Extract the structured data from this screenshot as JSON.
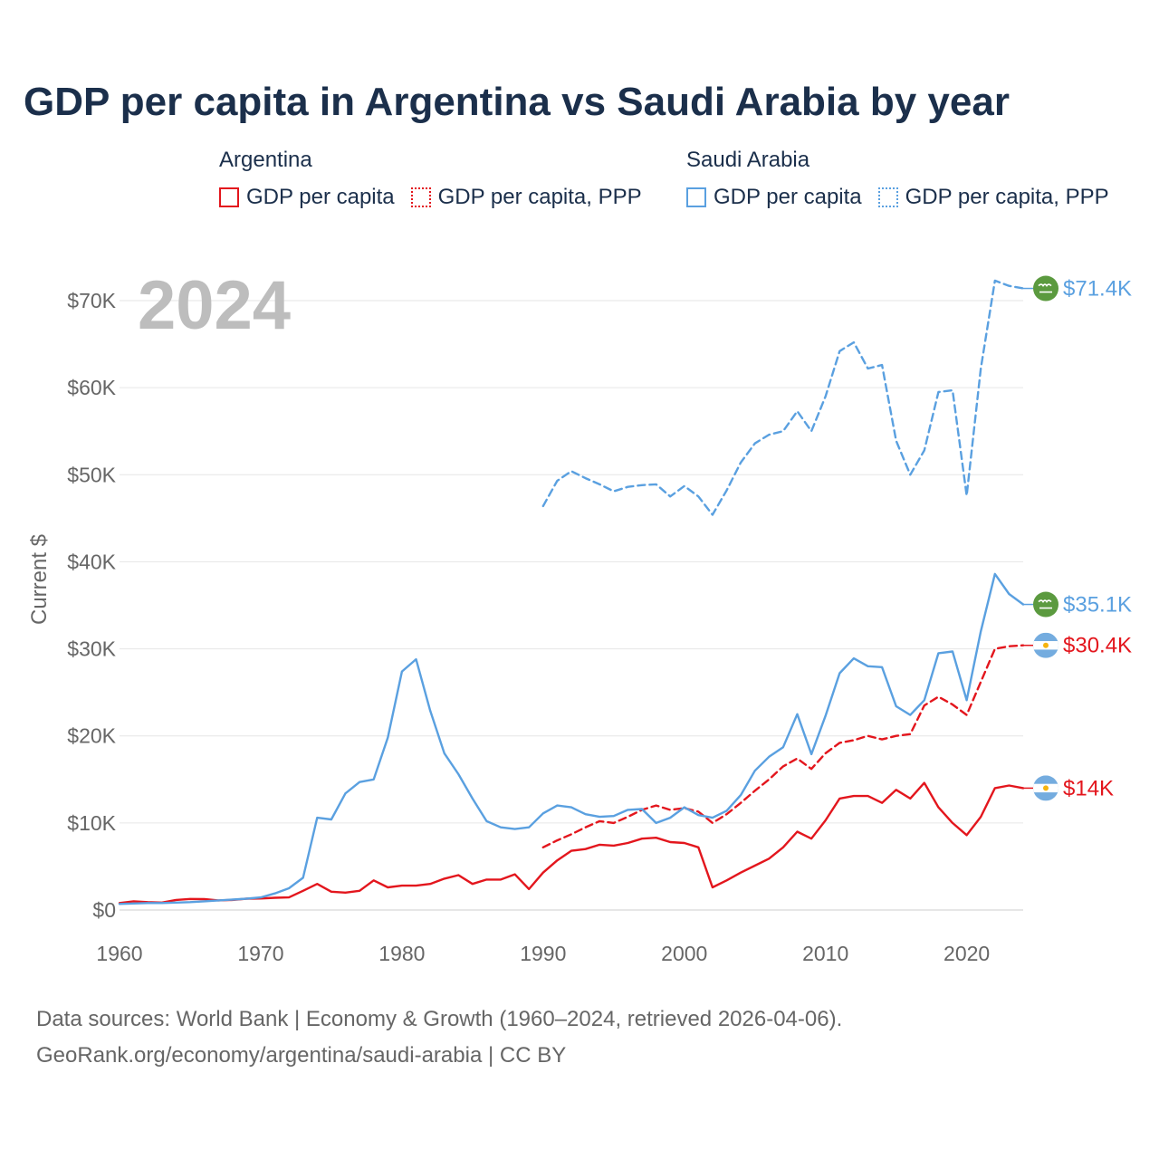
{
  "title": "GDP per capita in Argentina vs Saudi Arabia by year",
  "legend": {
    "groups": [
      {
        "name": "Argentina",
        "items": [
          "GDP per capita",
          "GDP per capita, PPP"
        ],
        "color": "#e3161d"
      },
      {
        "name": "Saudi Arabia",
        "items": [
          "GDP per capita",
          "GDP per capita, PPP"
        ],
        "color": "#5aa0e0"
      }
    ]
  },
  "year_watermark": "2024",
  "caption": {
    "line1": "Data sources: World Bank | Economy & Growth (1960–2024, retrieved 2026-04-06).",
    "line2": "GeoRank.org/economy/argentina/saudi-arabia | CC BY"
  },
  "colors": {
    "argentina": "#e3161d",
    "saudi_arabia": "#5aa0e0",
    "grid": "#e6e6e6",
    "title": "#1b2f4b"
  },
  "chart_data": {
    "type": "line",
    "ylabel": "Current $",
    "xlabel": "",
    "xlim": [
      1960,
      2024
    ],
    "ylim": [
      0,
      70000
    ],
    "x_ticks": [
      1960,
      1970,
      1980,
      1990,
      2000,
      2010,
      2020
    ],
    "x_tick_labels": [
      "1960",
      "1970",
      "1980",
      "1990",
      "2000",
      "2010",
      "2020"
    ],
    "y_ticks": [
      0,
      10000,
      20000,
      30000,
      40000,
      50000,
      60000,
      70000
    ],
    "y_tick_labels": [
      "$0",
      "$10K",
      "$20K",
      "$30K",
      "$40K",
      "$50K",
      "$60K",
      "$70K"
    ],
    "grid": true,
    "series": [
      {
        "name": "Argentina — GDP per capita",
        "country": "argentina",
        "style": "solid",
        "color": "#e3161d",
        "end_label": "$14K",
        "start_year": 1960,
        "values": [
          800,
          1000,
          900,
          850,
          1150,
          1270,
          1250,
          1100,
          1150,
          1300,
          1320,
          1400,
          1450,
          2200,
          3000,
          2100,
          2000,
          2200,
          3400,
          2600,
          2800,
          2800,
          3000,
          3600,
          4000,
          3000,
          3500,
          3500,
          4100,
          2400,
          4300,
          5700,
          6800,
          7000,
          7500,
          7400,
          7700,
          8200,
          8300,
          7800,
          7700,
          7200,
          2600,
          3400,
          4300,
          5100,
          5900,
          7200,
          9000,
          8200,
          10300,
          12800,
          13100,
          13100,
          12300,
          13800,
          12800,
          14600,
          11800,
          10000,
          8600,
          10700,
          14000,
          14300,
          14000
        ]
      },
      {
        "name": "Argentina — GDP per capita, PPP",
        "country": "argentina",
        "style": "dashed",
        "color": "#e3161d",
        "end_label": "$30.4K",
        "start_year": 1990,
        "values": [
          7200,
          8000,
          8700,
          9500,
          10200,
          10000,
          10700,
          11500,
          12000,
          11500,
          11700,
          11300,
          10000,
          11000,
          12300,
          13700,
          15000,
          16500,
          17400,
          16200,
          18000,
          19200,
          19500,
          20000,
          19600,
          20000,
          20200,
          23500,
          24500,
          23600,
          22400,
          26200,
          30000,
          30300,
          30400
        ]
      },
      {
        "name": "Saudi Arabia — GDP per capita",
        "country": "saudi_arabia",
        "style": "solid",
        "color": "#5aa0e0",
        "end_label": "$35.1K",
        "start_year": 1960,
        "values": [
          700,
          750,
          800,
          800,
          850,
          900,
          1000,
          1100,
          1200,
          1300,
          1450,
          1900,
          2500,
          3700,
          10600,
          10400,
          13400,
          14700,
          15000,
          19800,
          27400,
          28800,
          22900,
          18000,
          15600,
          12800,
          10200,
          9500,
          9300,
          9500,
          11100,
          12000,
          11800,
          11000,
          10700,
          10800,
          11500,
          11600,
          10000,
          10600,
          11800,
          10900,
          10600,
          11400,
          13200,
          16000,
          17600,
          18700,
          22500,
          17900,
          22300,
          27200,
          28900,
          28000,
          27900,
          23400,
          22400,
          24100,
          29500,
          29700,
          24100,
          32000,
          38600,
          36300,
          35100
        ]
      },
      {
        "name": "Saudi Arabia — GDP per capita, PPP",
        "country": "saudi_arabia",
        "style": "dashed",
        "color": "#5aa0e0",
        "end_label": "$71.4K",
        "start_year": 1990,
        "values": [
          46400,
          49300,
          50400,
          49600,
          48900,
          48100,
          48600,
          48800,
          48900,
          47500,
          48700,
          47500,
          45400,
          48200,
          51400,
          53600,
          54600,
          55000,
          57300,
          55000,
          59000,
          64200,
          65200,
          62200,
          62600,
          53900,
          50000,
          52800,
          59500,
          59700,
          47600,
          62200,
          72300,
          71700,
          71400
        ]
      }
    ]
  }
}
